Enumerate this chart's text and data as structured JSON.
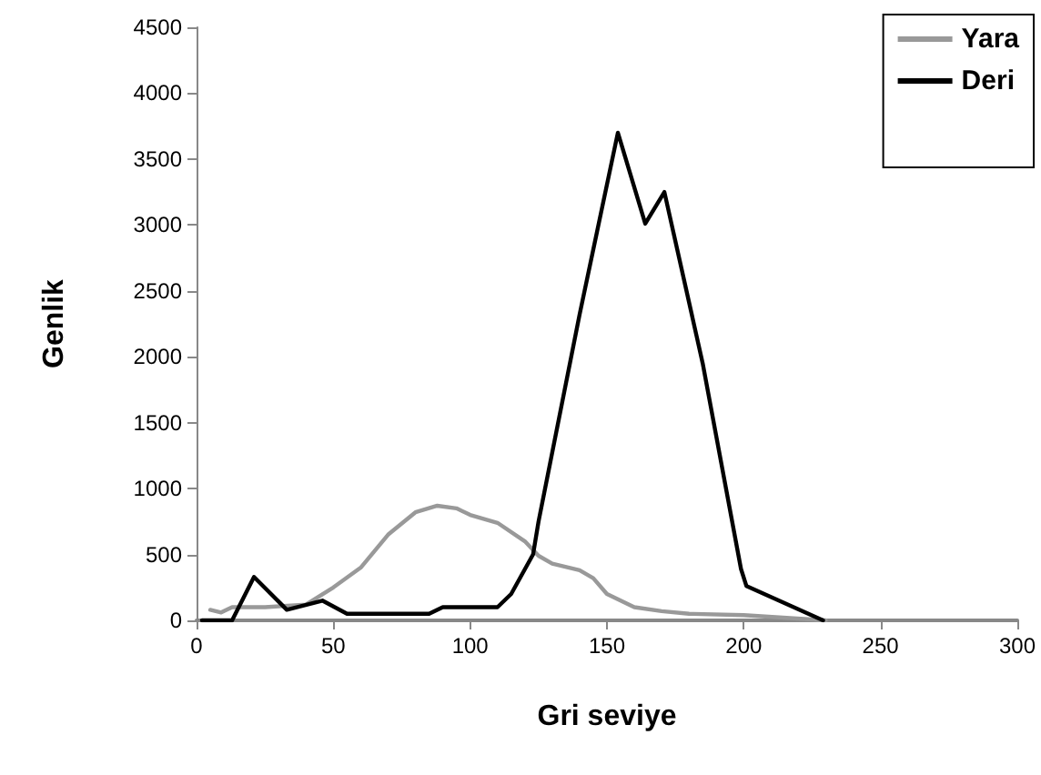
{
  "chart_data": {
    "type": "line",
    "xlabel": "Gri seviye",
    "ylabel": "Genlik",
    "xlim": [
      0,
      300
    ],
    "xticks": [
      0,
      50,
      100,
      150,
      200,
      250,
      300
    ],
    "ylim": [
      0,
      4500
    ],
    "yticks": [
      0,
      500,
      1000,
      1500,
      2000,
      2500,
      3000,
      3500,
      4000,
      4500
    ],
    "grid": false,
    "legend": "top right",
    "marker": "none",
    "line_style": "solid",
    "series": [
      {
        "name": "Yara",
        "color": "#999999",
        "x": [
          5,
          9,
          13,
          25,
          40,
          50,
          60,
          70,
          80,
          88,
          95,
          100,
          110,
          120,
          125,
          130,
          140,
          145,
          150,
          160,
          170,
          180,
          200,
          230
        ],
        "values": [
          80,
          60,
          100,
          100,
          120,
          250,
          400,
          650,
          820,
          870,
          850,
          800,
          740,
          600,
          490,
          430,
          380,
          320,
          200,
          100,
          70,
          50,
          40,
          0
        ]
      },
      {
        "name": "Deri",
        "color": "#000000",
        "x": [
          2,
          13,
          21,
          33,
          46,
          55,
          85,
          90,
          110,
          115,
          123,
          125,
          140,
          154,
          164,
          171,
          185,
          199,
          201,
          229
        ],
        "values": [
          0,
          0,
          330,
          80,
          150,
          50,
          50,
          100,
          100,
          200,
          500,
          750,
          2320,
          3700,
          3010,
          3250,
          1950,
          390,
          260,
          0
        ]
      }
    ]
  }
}
